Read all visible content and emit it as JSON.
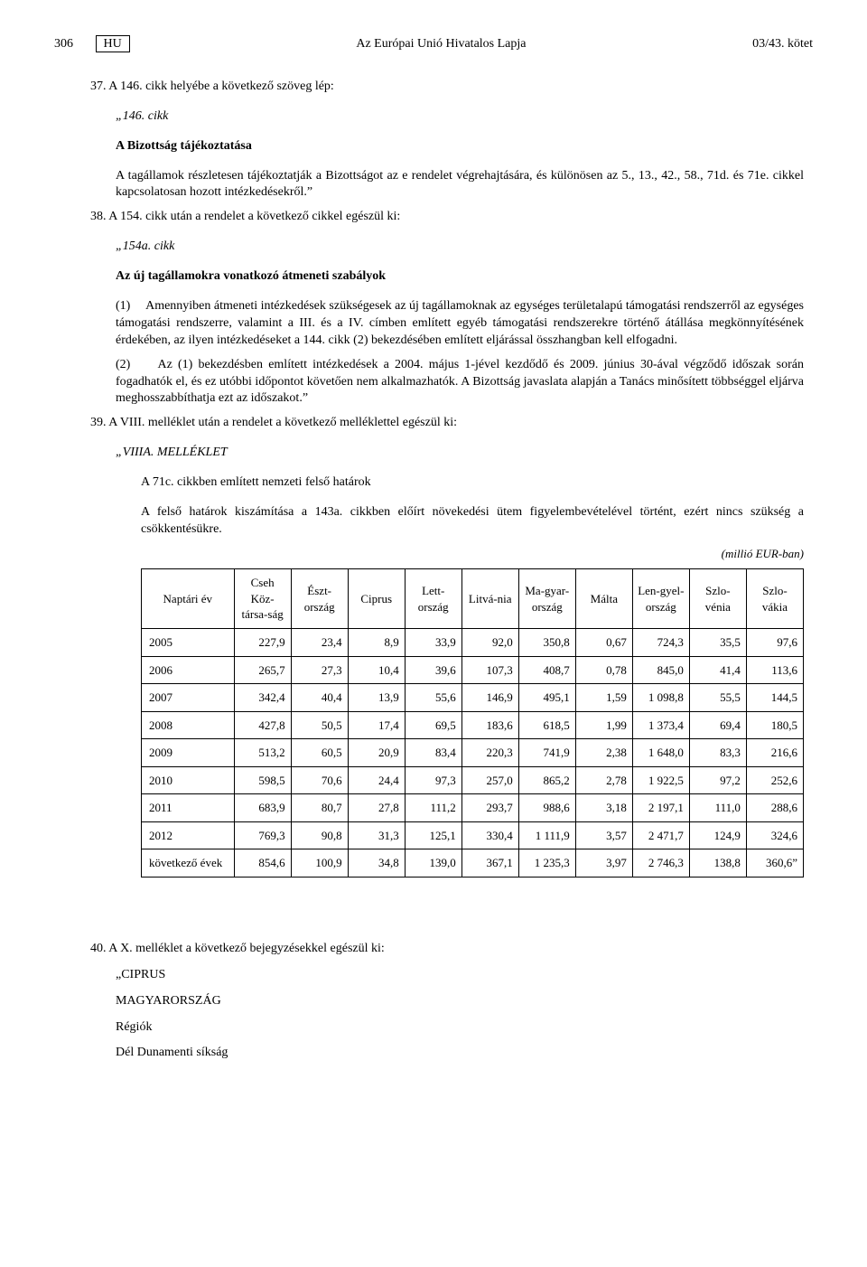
{
  "header": {
    "page_number": "306",
    "lang_box": "HU",
    "title": "Az Európai Unió Hivatalos Lapja",
    "right": "03/43. kötet"
  },
  "item37": {
    "num": "37.",
    "lead": "A 146. cikk helyébe a következő szöveg lép:",
    "quote_label": "„146. cikk",
    "subtitle": "A Bizottság tájékoztatása",
    "body": "A tagállamok részletesen tájékoztatják a Bizottságot az e rendelet végrehajtására, és különösen az 5., 13., 42., 58., 71d. és 71e. cikkel kapcsolatosan hozott intézkedésekről.”"
  },
  "item38": {
    "num": "38.",
    "lead": "A 154. cikk után a rendelet a következő cikkel egészül ki:",
    "quote_label": "„154a. cikk",
    "subtitle": "Az új tagállamokra vonatkozó átmeneti szabályok",
    "para1_num": "(1)",
    "para1": "Amennyiben átmeneti intézkedések szükségesek az új tagállamoknak az egységes területalapú támogatási rendszerről az egységes támogatási rendszerre, valamint a III. és a IV. címben említett egyéb támogatási rendszerekre történő átállása megkönnyítésének érdekében, az ilyen intézkedéseket a 144. cikk (2) bekezdésében említett eljárással összhangban kell elfogadni.",
    "para2_num": "(2)",
    "para2": "Az (1) bekezdésben említett intézkedések a 2004. május 1-jével kezdődő és 2009. június 30-ával végződő időszak során fogadhatók el, és ez utóbbi időpontot követően nem alkalmazhatók. A Bizottság javaslata alapján a Tanács minősített többséggel eljárva meghosszabbíthatja ezt az időszakot.”"
  },
  "item39": {
    "num": "39.",
    "lead": "A VIII. melléklet után a rendelet a következő melléklettel egészül ki:",
    "quote_label": "„VIIIA. MELLÉKLET",
    "line1": "A 71c. cikkben említett nemzeti felső határok",
    "line2": "A felső határok kiszámítása a 143a. cikkben előírt növekedési ütem figyelembevételével történt, ezért nincs szükség a csökkentésükre.",
    "unit": "(millió EUR-ban)"
  },
  "table": {
    "columns": [
      "Naptári év",
      "Cseh Köz-társa-ság",
      "Észt-ország",
      "Ciprus",
      "Lett-ország",
      "Litvá-nia",
      "Ma-gyar-ország",
      "Málta",
      "Len-gyel-ország",
      "Szlo-vénia",
      "Szlo-vákia"
    ],
    "col_widths": [
      "14%",
      "8.6%",
      "8.6%",
      "8.6%",
      "8.6%",
      "8.6%",
      "8.6%",
      "8.6%",
      "8.6%",
      "8.6%",
      "8.6%"
    ],
    "rows": [
      [
        "2005",
        "227,9",
        "23,4",
        "8,9",
        "33,9",
        "92,0",
        "350,8",
        "0,67",
        "724,3",
        "35,5",
        "97,6"
      ],
      [
        "2006",
        "265,7",
        "27,3",
        "10,4",
        "39,6",
        "107,3",
        "408,7",
        "0,78",
        "845,0",
        "41,4",
        "113,6"
      ],
      [
        "2007",
        "342,4",
        "40,4",
        "13,9",
        "55,6",
        "146,9",
        "495,1",
        "1,59",
        "1 098,8",
        "55,5",
        "144,5"
      ],
      [
        "2008",
        "427,8",
        "50,5",
        "17,4",
        "69,5",
        "183,6",
        "618,5",
        "1,99",
        "1 373,4",
        "69,4",
        "180,5"
      ],
      [
        "2009",
        "513,2",
        "60,5",
        "20,9",
        "83,4",
        "220,3",
        "741,9",
        "2,38",
        "1 648,0",
        "83,3",
        "216,6"
      ],
      [
        "2010",
        "598,5",
        "70,6",
        "24,4",
        "97,3",
        "257,0",
        "865,2",
        "2,78",
        "1 922,5",
        "97,2",
        "252,6"
      ],
      [
        "2011",
        "683,9",
        "80,7",
        "27,8",
        "111,2",
        "293,7",
        "988,6",
        "3,18",
        "2 197,1",
        "111,0",
        "288,6"
      ],
      [
        "2012",
        "769,3",
        "90,8",
        "31,3",
        "125,1",
        "330,4",
        "1 111,9",
        "3,57",
        "2 471,7",
        "124,9",
        "324,6"
      ],
      [
        "következő évek",
        "854,6",
        "100,9",
        "34,8",
        "139,0",
        "367,1",
        "1 235,3",
        "3,97",
        "2 746,3",
        "138,8",
        "360,6”"
      ]
    ]
  },
  "item40": {
    "num": "40.",
    "lead": "A X. melléklet a következő bejegyzésekkel egészül ki:",
    "lines": [
      "„CIPRUS",
      "MAGYARORSZÁG",
      "Régiók",
      "Dél Dunamenti síkság"
    ]
  }
}
